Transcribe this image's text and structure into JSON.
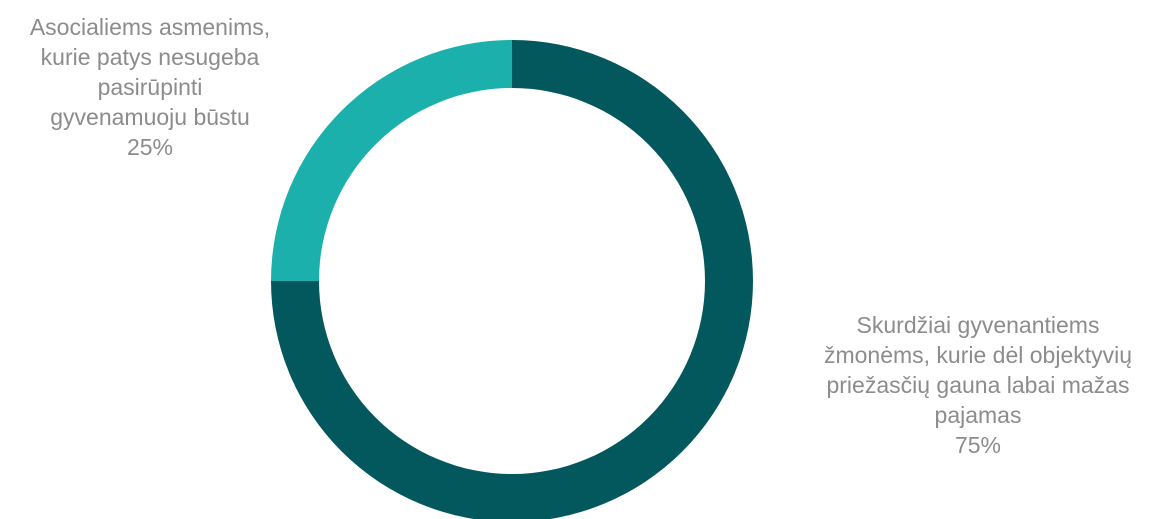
{
  "chart_data": {
    "type": "pie",
    "donut": true,
    "slices": [
      {
        "name": "Asocialiems asmenims, kurie patys nesugeba pasirūpinti gyvenamuoju būstu",
        "label_lines": [
          "Asocialiems asmenims,",
          "kurie patys nesugeba",
          "pasirūpinti",
          "gyvenamuoju būstu"
        ],
        "value": 25,
        "value_label": "25%",
        "color": "#1cb0ad"
      },
      {
        "name": "Skurdžiai gyvenantiems žmonėms, kurie dėl objektyvių priežasčių gauna labai mažas pajamas",
        "label_lines": [
          "Skurdžiai gyvenantiems",
          "žmonėms, kurie dėl objektyvių",
          "priežasčių  gauna labai mažas",
          "pajamas"
        ],
        "value": 75,
        "value_label": "75%",
        "color": "#02585d"
      }
    ],
    "title": "",
    "legend": "none"
  }
}
